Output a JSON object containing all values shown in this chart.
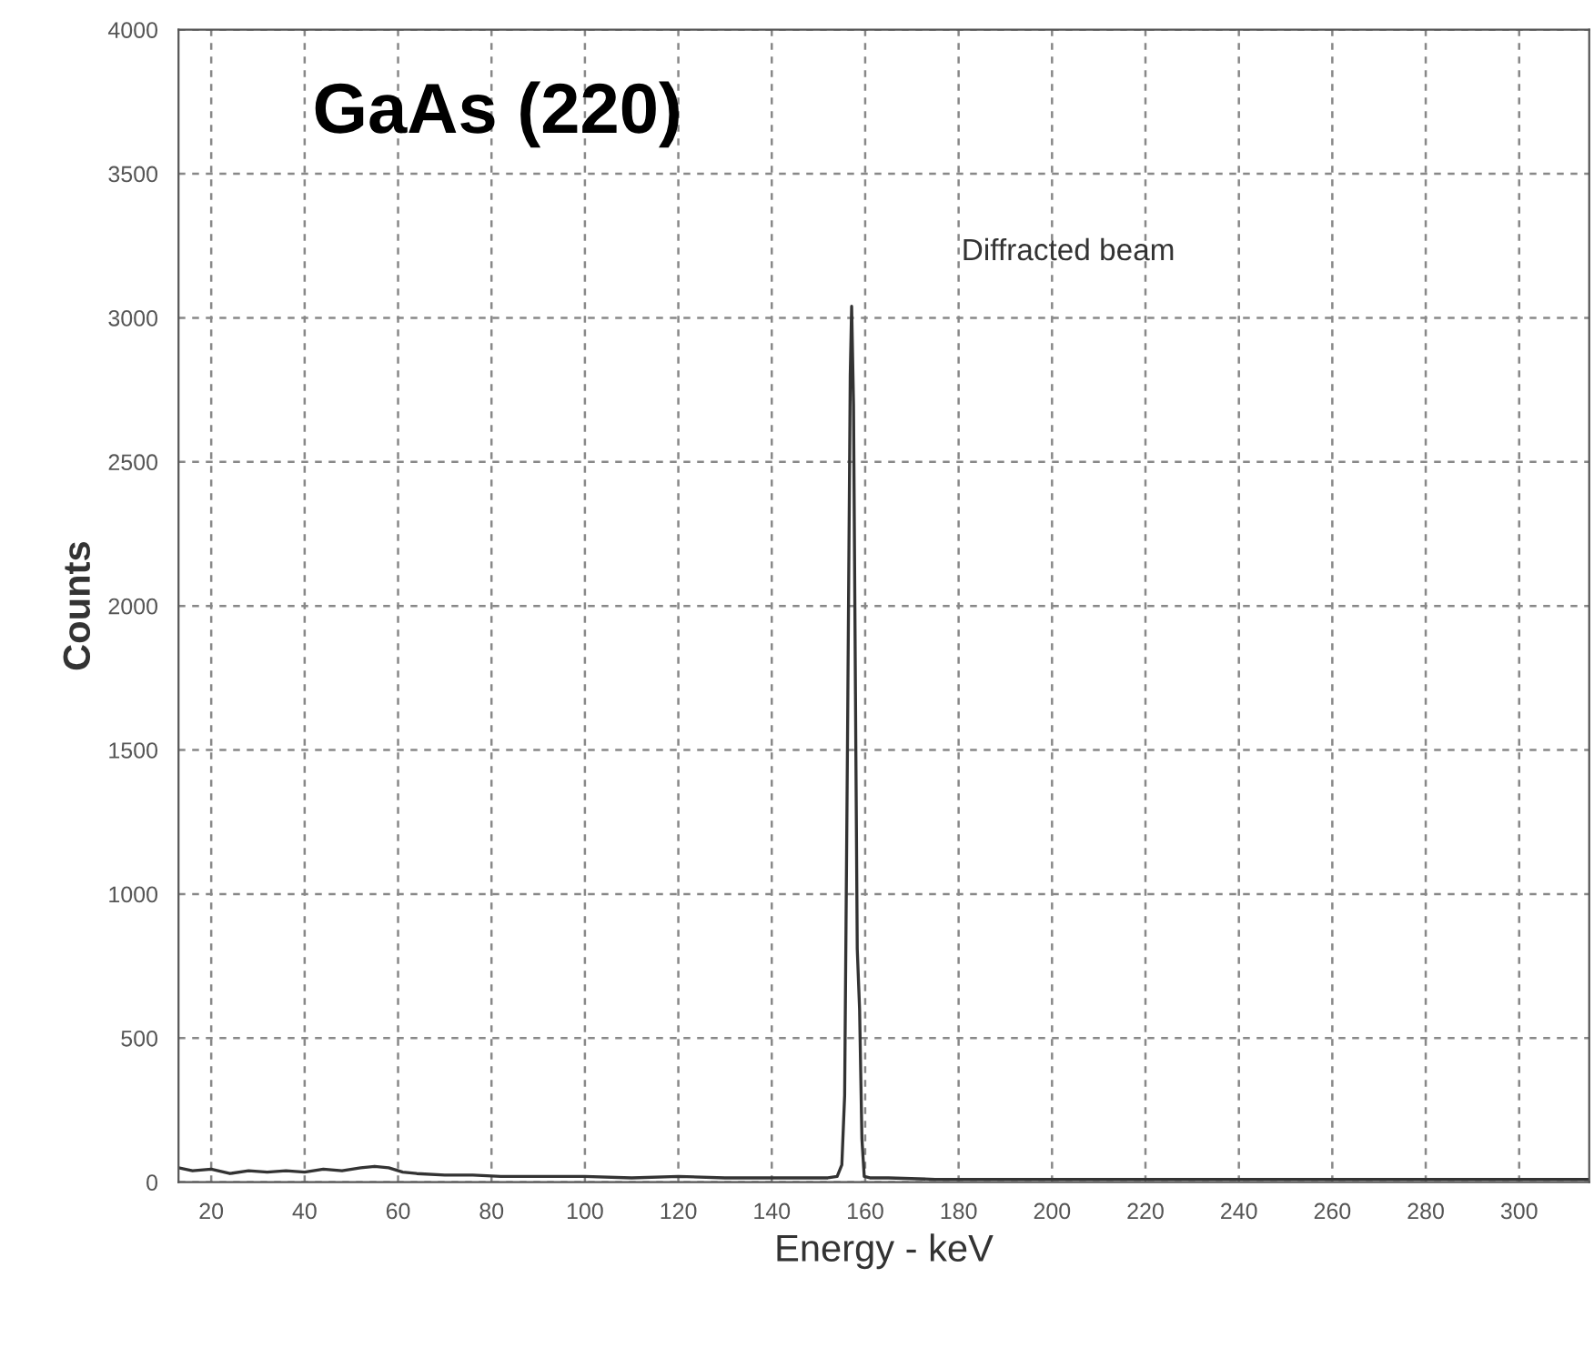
{
  "chart_data": {
    "type": "line",
    "title": "GaAs (220)",
    "xlabel": "Energy - keV",
    "ylabel": "Counts",
    "annotations": [
      "Diffracted beam"
    ],
    "series": [
      {
        "color": "#333333",
        "x": [
          13,
          16,
          20,
          24,
          28,
          32,
          36,
          40,
          44,
          48,
          52,
          55,
          58,
          61,
          64,
          70,
          76,
          82,
          90,
          100,
          110,
          120,
          130,
          140,
          148,
          152,
          154,
          155,
          155.6,
          156.2,
          156.8,
          157.1,
          157.5,
          158,
          158.3,
          158.8,
          159.3,
          159.8,
          161,
          165,
          175,
          190,
          210,
          230,
          250,
          270,
          290,
          305,
          315
        ],
        "values": [
          50,
          40,
          45,
          30,
          40,
          35,
          40,
          35,
          45,
          40,
          50,
          55,
          50,
          35,
          30,
          25,
          25,
          20,
          20,
          20,
          15,
          20,
          15,
          15,
          15,
          15,
          20,
          60,
          300,
          1500,
          2800,
          3040,
          2700,
          1500,
          810,
          600,
          150,
          20,
          15,
          15,
          10,
          10,
          10,
          10,
          10,
          10,
          10,
          10,
          10
        ]
      }
    ],
    "xlim": [
      13,
      315
    ],
    "ylim": [
      0,
      4000
    ],
    "xticks": [
      20,
      40,
      60,
      80,
      100,
      120,
      140,
      160,
      180,
      200,
      220,
      240,
      260,
      280,
      300
    ],
    "yticks": [
      0,
      500,
      1000,
      1500,
      2000,
      2500,
      3000,
      3500,
      4000
    ],
    "grid": true,
    "legend": false,
    "marker": "none",
    "line_style": "solid"
  }
}
